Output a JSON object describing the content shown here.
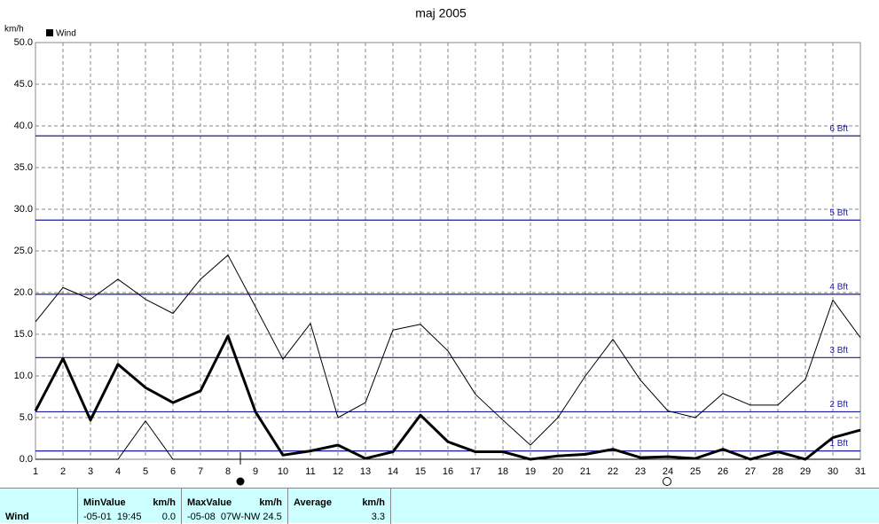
{
  "chart_data": {
    "type": "line",
    "title": "maj 2005",
    "y_label": "km/h",
    "x": [
      1,
      2,
      3,
      4,
      5,
      6,
      7,
      8,
      9,
      10,
      11,
      12,
      13,
      14,
      15,
      16,
      17,
      18,
      19,
      20,
      21,
      22,
      23,
      24,
      25,
      26,
      27,
      28,
      29,
      30,
      31
    ],
    "series": [
      {
        "name": "Wind",
        "color": "#000000",
        "width": 3,
        "values": [
          5.8,
          12.1,
          4.7,
          11.4,
          8.6,
          6.8,
          8.2,
          14.8,
          5.7,
          0.5,
          1.0,
          1.7,
          0.1,
          0.9,
          5.3,
          2.1,
          0.9,
          0.9,
          0.0,
          0.4,
          0.6,
          1.2,
          0.2,
          0.3,
          0.1,
          1.2,
          0.0,
          0.9,
          0.0,
          2.6,
          3.5
        ]
      },
      {
        "color": "#000000",
        "width": 1,
        "values": [
          16.5,
          20.6,
          19.2,
          21.6,
          19.2,
          17.5,
          21.6,
          24.5,
          18.3,
          12.0,
          16.3,
          5.0,
          6.8,
          15.5,
          16.2,
          13.0,
          7.8,
          4.7,
          1.7,
          5.0,
          10.0,
          14.4,
          9.5,
          5.8,
          5.0,
          7.9,
          6.5,
          6.5,
          9.6,
          19.1,
          14.6
        ]
      },
      {
        "color": "#000000",
        "width": 1,
        "values": [
          0.0,
          0.0,
          0.0,
          0.0,
          4.6,
          0.0,
          0.0,
          0.0,
          0.0,
          0.0,
          0.0,
          0.0,
          0.0,
          0.0,
          0.0,
          0.0,
          0.0,
          0.0,
          0.0,
          0.0,
          0.0,
          0.0,
          0.0,
          0.0,
          0.0,
          0.0,
          0.0,
          0.0,
          0.0,
          0.0,
          0.0
        ]
      }
    ],
    "xlim": [
      1,
      31
    ],
    "xticks": [
      1,
      2,
      3,
      4,
      5,
      6,
      7,
      8,
      9,
      10,
      11,
      12,
      13,
      14,
      15,
      16,
      17,
      18,
      19,
      20,
      21,
      22,
      23,
      24,
      25,
      26,
      27,
      28,
      29,
      30,
      31
    ],
    "ylim": [
      0,
      50
    ],
    "yticks": [
      {
        "value": 0,
        "label": "0.0"
      },
      {
        "value": 5,
        "label": "5.0"
      },
      {
        "value": 10,
        "label": "10.0"
      },
      {
        "value": 15,
        "label": "15.0"
      },
      {
        "value": 20,
        "label": "20.0"
      },
      {
        "value": 25,
        "label": "25.0"
      },
      {
        "value": 30,
        "label": "30.0"
      },
      {
        "value": 35,
        "label": "35.0"
      },
      {
        "value": 40,
        "label": "40.0"
      },
      {
        "value": 45,
        "label": "45.0"
      },
      {
        "value": 50,
        "label": "50.0"
      }
    ],
    "grid": true,
    "reference_color": "#1a1aa0",
    "reference_lines": [
      {
        "value": 1.0,
        "label": "1 Bft"
      },
      {
        "value": 5.7,
        "label": "2 Bft"
      },
      {
        "value": 12.2,
        "label": "3 Bft"
      },
      {
        "value": 19.8,
        "label": "4 Bft"
      },
      {
        "value": 28.7,
        "label": "5 Bft"
      },
      {
        "value": 38.8,
        "label": "6 Bft"
      }
    ]
  },
  "table": {
    "row_label": "Wind",
    "min": {
      "title": "MinValue",
      "unit": "km/h",
      "when": "-05-01  19:45",
      "value": "0.0"
    },
    "max": {
      "title": "MaxValue",
      "unit": "km/h",
      "when": "-05-08  07W-NW 24.5"
    },
    "avg": {
      "title": "Average",
      "unit": "km/h",
      "value": "3.3"
    }
  }
}
